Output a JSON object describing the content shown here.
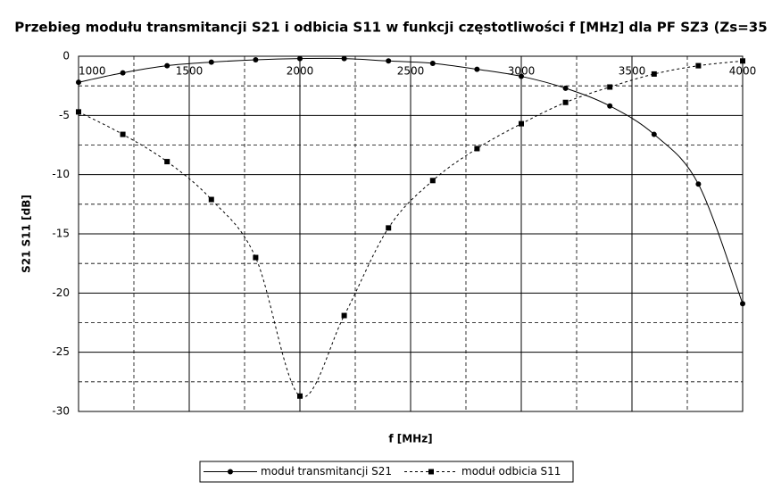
{
  "chart_data": {
    "type": "line",
    "title": "Przebieg modułu transmitancji S21 i odbicia S11 w funkcji częstotliwości f [MHz] dla PF SZ3 (Zs=35",
    "x_label": "f [MHz]",
    "y_label": "S21  S11 [dB]",
    "x": [
      1000,
      1200,
      1400,
      1600,
      1800,
      2000,
      2200,
      2400,
      2600,
      2800,
      3000,
      3200,
      3400,
      3600,
      3800,
      4000
    ],
    "series": [
      {
        "name": "moduł transmitancji S21",
        "color": "#000000",
        "dash": false,
        "marker": "circle",
        "values": [
          -2.2,
          -1.4,
          -0.8,
          -0.5,
          -0.3,
          -0.2,
          -0.2,
          -0.4,
          -0.6,
          -1.1,
          -1.7,
          -2.7,
          -4.2,
          -6.6,
          -10.8,
          -20.9
        ]
      },
      {
        "name": "moduł odbicia S11",
        "color": "#000000",
        "dash": true,
        "marker": "square",
        "values": [
          -4.7,
          -6.6,
          -8.9,
          -12.1,
          -17.0,
          -28.7,
          -21.9,
          -14.5,
          -10.5,
          -7.8,
          -5.7,
          -3.9,
          -2.6,
          -1.5,
          -0.8,
          -0.4
        ]
      }
    ],
    "xlim": [
      1000,
      4000
    ],
    "xticks": [
      1000,
      1500,
      2000,
      2500,
      3000,
      3500,
      4000
    ],
    "ylim": [
      -30,
      0
    ],
    "yticks": [
      0,
      -5,
      -10,
      -15,
      -20,
      -25,
      -30
    ],
    "grid": true,
    "legend": "bottom"
  }
}
